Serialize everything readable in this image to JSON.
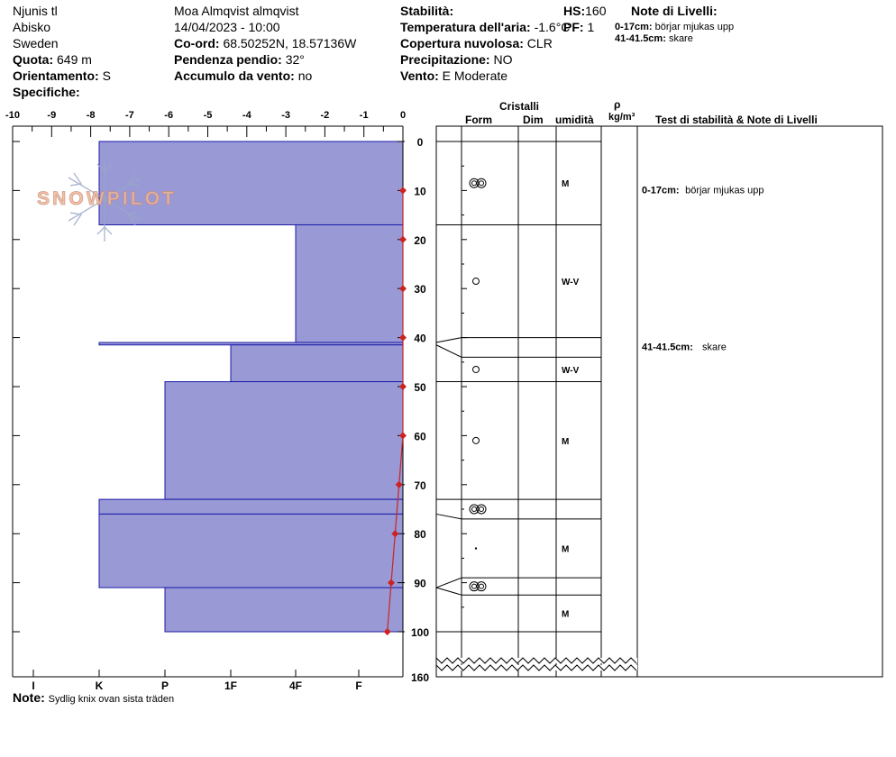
{
  "header": {
    "location": "Njunis tl",
    "area": "Abisko",
    "country": "Sweden",
    "elevation_label": "Quota:",
    "elevation_value": "649 m",
    "aspect_label": "Orientamento:",
    "aspect_value": "S",
    "specifics_label": "Specifiche:",
    "observer": "Moa Almqvist almqvist",
    "datetime": "14/04/2023 - 10:00",
    "coord_label": "Co-ord:",
    "coord_value": "68.50252N, 18.57136W",
    "slope_label": "Pendenza pendio:",
    "slope_value": "32°",
    "wind_load_label": "Accumulo da vento:",
    "wind_load_value": "no",
    "stability_label": "Stabilità:",
    "air_temp_label": "Temperatura dell'aria:",
    "air_temp_value": "-1.6°C",
    "cloud_label": "Copertura nuvolosa:",
    "cloud_value": "CLR",
    "precip_label": "Precipitazione:",
    "precip_value": "NO",
    "wind_label": "Vento:",
    "wind_value": "E Moderate",
    "hs_label": "HS:",
    "hs_value": "160",
    "pf_label": "PF:",
    "pf_value": "1",
    "layer_notes_title": "Note di Livelli:",
    "layer_notes": [
      {
        "range": "0-17cm:",
        "text": "börjar mjukas upp"
      },
      {
        "range": "41-41.5cm:",
        "text": "skare"
      }
    ]
  },
  "table_headers": {
    "crystals": "Cristalli",
    "form": "Form",
    "size": "Dim",
    "moisture": "umidità",
    "density_symbol": "ρ",
    "density_unit": "kg/m³",
    "tests": "Test di stabilità & Note di Livelli"
  },
  "footer": {
    "note_label": "Note:",
    "note_text": "Sydlig knix ovan sista träden"
  },
  "watermark": "SNOWPILOT",
  "colors": {
    "hardness_fill": "#9999d6",
    "hardness_edge": "#1a1aa6",
    "temperature": "#cc2222",
    "line": "#000000"
  },
  "chart_data": {
    "type": "snow-profile",
    "temperature_axis": {
      "label": "",
      "ticks": [
        -10,
        -9,
        -8,
        -7,
        -6,
        -5,
        -4,
        -3,
        -2,
        -1,
        0
      ],
      "range": [
        -10,
        0
      ]
    },
    "depth_axis": {
      "label": "",
      "ticks": [
        0,
        10,
        20,
        30,
        40,
        50,
        60,
        70,
        80,
        90,
        100
      ],
      "range": [
        0,
        100
      ],
      "total_depth_label": "160",
      "total_depth": 160
    },
    "hardness_scale": [
      "I",
      "K",
      "P",
      "1F",
      "4F",
      "F"
    ],
    "layers": [
      {
        "top": 0,
        "bottom": 17,
        "hardness": "K"
      },
      {
        "top": 17,
        "bottom": 41,
        "hardness": "4F-"
      },
      {
        "top": 41,
        "bottom": 41.5,
        "hardness": "K"
      },
      {
        "top": 41.5,
        "bottom": 49,
        "hardness": "1F"
      },
      {
        "top": 49,
        "bottom": 73,
        "hardness": "P"
      },
      {
        "top": 73,
        "bottom": 76,
        "hardness": "K"
      },
      {
        "top": 76,
        "bottom": 91,
        "hardness": "K"
      },
      {
        "top": 91,
        "bottom": 100,
        "hardness": "P"
      }
    ],
    "temperature_profile": [
      {
        "depth": 10,
        "temp": 0
      },
      {
        "depth": 20,
        "temp": 0
      },
      {
        "depth": 30,
        "temp": 0
      },
      {
        "depth": 40,
        "temp": 0
      },
      {
        "depth": 50,
        "temp": 0
      },
      {
        "depth": 60,
        "temp": 0
      },
      {
        "depth": 70,
        "temp": -0.1
      },
      {
        "depth": 80,
        "temp": -0.2
      },
      {
        "depth": 90,
        "temp": -0.3
      },
      {
        "depth": 100,
        "temp": -0.4
      }
    ],
    "crystal_rows": [
      {
        "top": 0,
        "bottom": 17,
        "form": "melt-cluster",
        "moisture": "M"
      },
      {
        "top": 17,
        "bottom": 40,
        "form": "rounded",
        "moisture": "W-V"
      },
      {
        "top": 40,
        "bottom": 44,
        "form": "",
        "moisture": ""
      },
      {
        "top": 44,
        "bottom": 49,
        "form": "rounded",
        "moisture": "W-V"
      },
      {
        "top": 49,
        "bottom": 73,
        "form": "rounded",
        "moisture": "M"
      },
      {
        "top": 73,
        "bottom": 77,
        "form": "melt-cluster",
        "moisture": ""
      },
      {
        "top": 77,
        "bottom": 89,
        "form": "dot",
        "moisture": "M"
      },
      {
        "top": 89,
        "bottom": 92.5,
        "form": "melt-cluster",
        "moisture": ""
      },
      {
        "top": 92.5,
        "bottom": 100,
        "form": "",
        "moisture": "M"
      }
    ],
    "layer_notes_in_table": [
      {
        "depth": 10,
        "range": "0-17cm:",
        "text": "börjar mjukas upp"
      },
      {
        "depth": 42,
        "range": "41-41.5cm:",
        "text": "skare"
      }
    ]
  }
}
